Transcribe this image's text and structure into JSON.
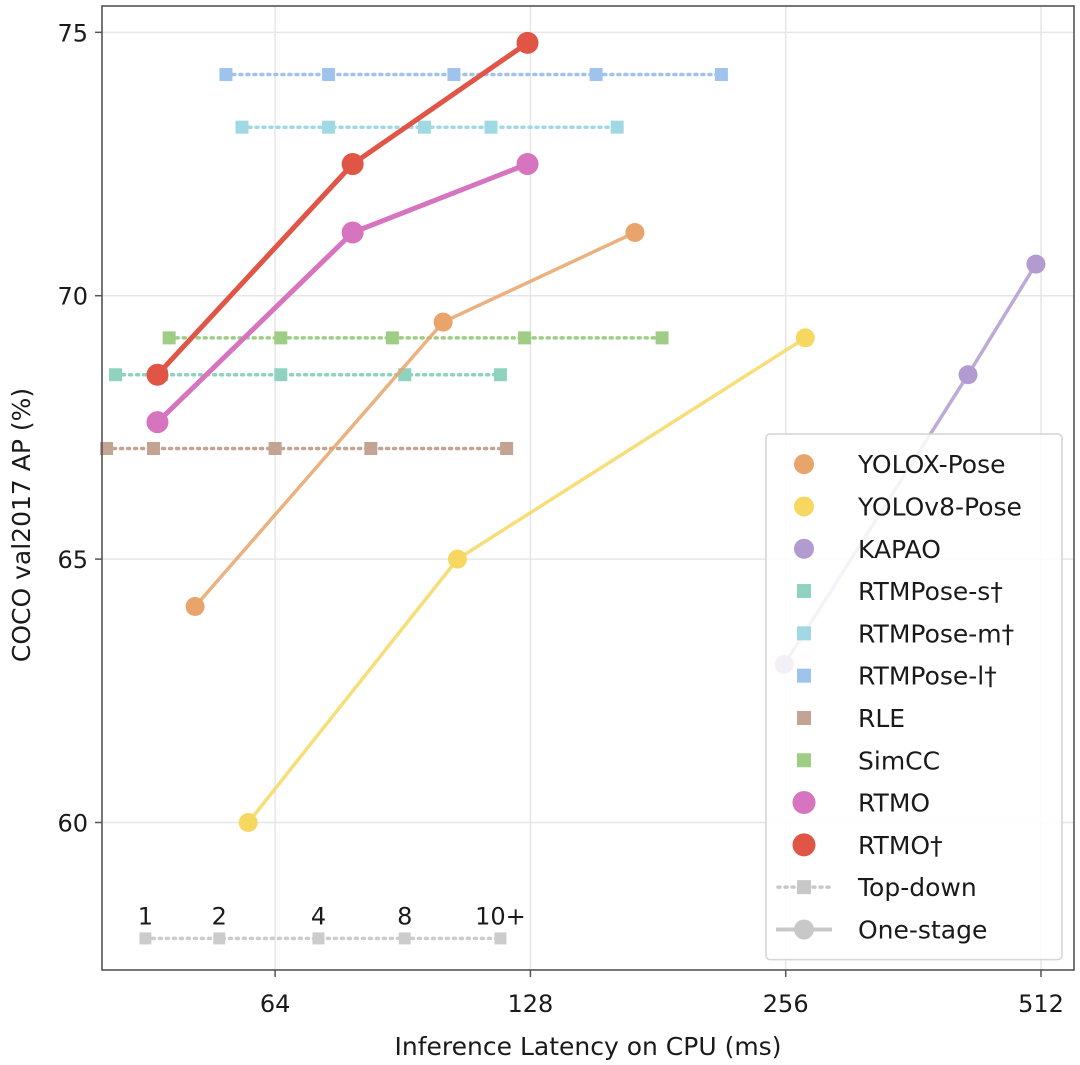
{
  "chart_data": {
    "type": "line",
    "title": "",
    "xlabel": "Inference Latency on CPU (ms)",
    "ylabel": "COCO val2017 AP (%)",
    "xscale": "log2",
    "xlim": [
      40,
      560
    ],
    "ylim": [
      57.2,
      75.5
    ],
    "xticks": [
      64,
      128,
      256,
      512
    ],
    "xtick_labels": [
      "64",
      "128",
      "256",
      "512"
    ],
    "yticks": [
      60,
      65,
      70,
      75
    ],
    "ytick_labels": [
      "60",
      "65",
      "70",
      "75"
    ],
    "grid": true,
    "legend_position": "lower-right",
    "series": [
      {
        "name": "YOLOX-Pose",
        "kind": "one-stage",
        "color": "#e8a46a",
        "x": [
          51.5,
          101,
          170
        ],
        "y": [
          64.1,
          69.5,
          71.2
        ]
      },
      {
        "name": "YOLOv8-Pose",
        "kind": "one-stage",
        "color": "#f6d860",
        "x": [
          59.5,
          105,
          270
        ],
        "y": [
          60.0,
          65.0,
          69.2
        ]
      },
      {
        "name": "KAPAO",
        "kind": "one-stage",
        "color": "#b19bd0",
        "x": [
          255,
          420,
          505
        ],
        "y": [
          63.0,
          68.5,
          70.6
        ]
      },
      {
        "name": "RTMPose-s†",
        "kind": "top-down",
        "color": "#8fd2c0",
        "x": [
          41.5,
          47,
          65,
          91,
          118
        ],
        "y": [
          68.5,
          68.5,
          68.5,
          68.5,
          68.5
        ]
      },
      {
        "name": "RTMPose-m†",
        "kind": "top-down",
        "color": "#a0d8e3",
        "x": [
          58.5,
          74,
          96,
          115,
          162
        ],
        "y": [
          73.2,
          73.2,
          73.2,
          73.2,
          73.2
        ]
      },
      {
        "name": "RTMPose-l†",
        "kind": "top-down",
        "color": "#9fc3ec",
        "x": [
          56,
          74,
          104,
          153,
          215
        ],
        "y": [
          74.2,
          74.2,
          74.2,
          74.2,
          74.2
        ]
      },
      {
        "name": "RLE",
        "kind": "top-down",
        "color": "#c3a393",
        "x": [
          40.5,
          46,
          64,
          83,
          120
        ],
        "y": [
          67.1,
          67.1,
          67.1,
          67.1,
          67.1
        ]
      },
      {
        "name": "SimCC",
        "kind": "top-down",
        "color": "#9fcd86",
        "x": [
          48,
          65,
          88,
          126,
          183
        ],
        "y": [
          69.2,
          69.2,
          69.2,
          69.2,
          69.2
        ]
      },
      {
        "name": "RTMO",
        "kind": "one-stage",
        "color": "#d674c0",
        "x": [
          46.5,
          79,
          127
        ],
        "y": [
          67.6,
          71.2,
          72.5
        ]
      },
      {
        "name": "RTMO†",
        "kind": "one-stage",
        "color": "#e05545",
        "x": [
          46.5,
          79,
          127
        ],
        "y": [
          68.5,
          72.5,
          74.8
        ]
      }
    ],
    "batch_legend": {
      "labels": [
        "1",
        "2",
        "4",
        "8",
        "10+"
      ],
      "x": [
        45,
        55,
        72,
        91,
        118
      ],
      "y": 57.8,
      "color": "#cccccc"
    },
    "legend_entries": [
      {
        "label": "YOLOX-Pose",
        "marker": "circle",
        "color": "#e8a46a"
      },
      {
        "label": "YOLOv8-Pose",
        "marker": "circle",
        "color": "#f6d860"
      },
      {
        "label": "KAPAO",
        "marker": "circle",
        "color": "#b19bd0"
      },
      {
        "label": "RTMPose-s†",
        "marker": "square",
        "color": "#8fd2c0"
      },
      {
        "label": "RTMPose-m†",
        "marker": "square",
        "color": "#a0d8e3"
      },
      {
        "label": "RTMPose-l†",
        "marker": "square",
        "color": "#9fc3ec"
      },
      {
        "label": "RLE",
        "marker": "square",
        "color": "#c3a393"
      },
      {
        "label": "SimCC",
        "marker": "square",
        "color": "#9fcd86"
      },
      {
        "label": "RTMO",
        "marker": "circle-large",
        "color": "#d674c0"
      },
      {
        "label": "RTMO†",
        "marker": "circle-large",
        "color": "#e05545"
      },
      {
        "label": "Top-down",
        "marker": "dotted-square",
        "color": "#c8c8c8"
      },
      {
        "label": "One-stage",
        "marker": "solid-circle",
        "color": "#c8c8c8"
      }
    ]
  }
}
